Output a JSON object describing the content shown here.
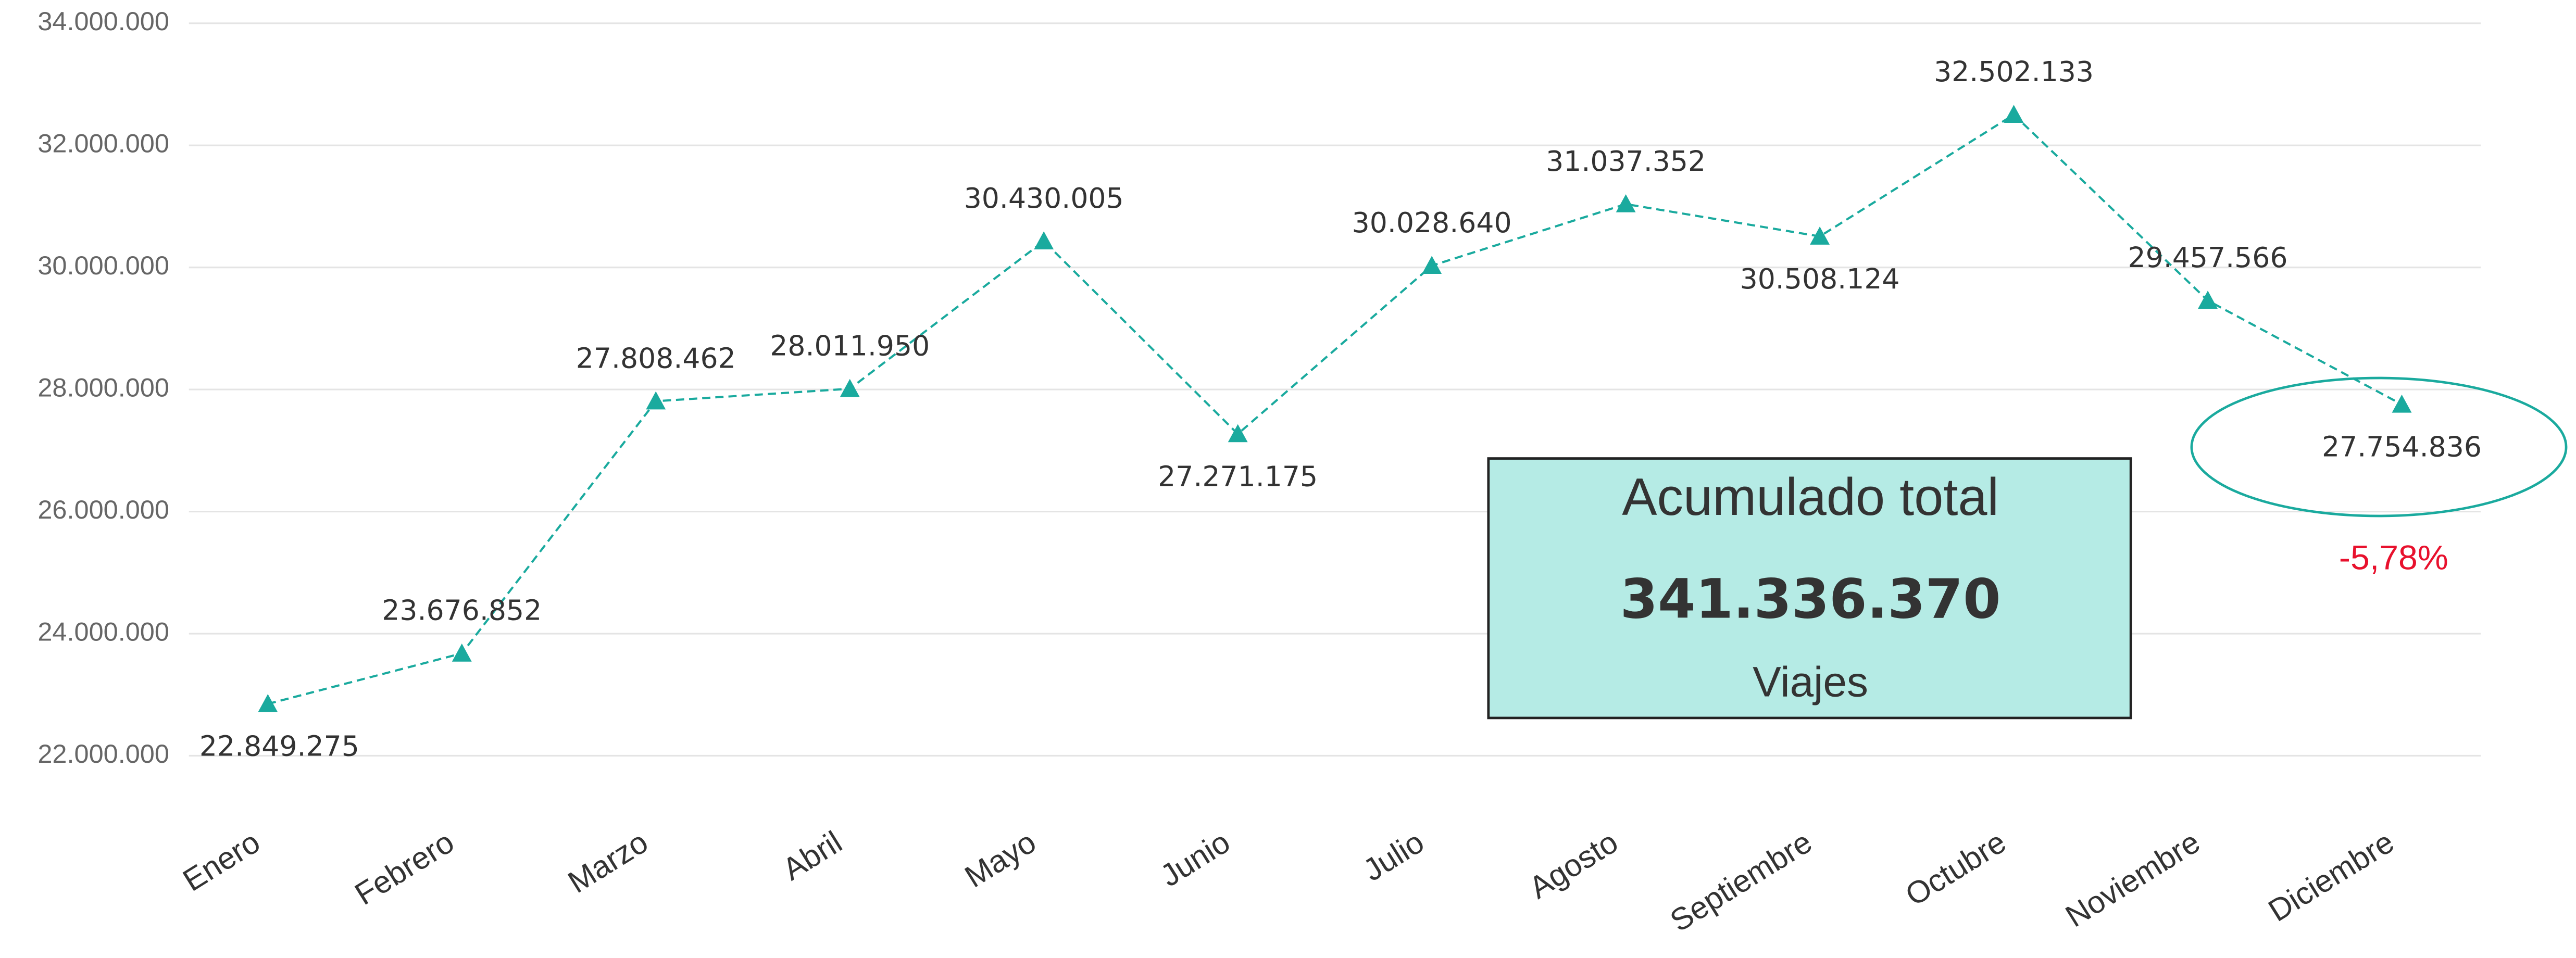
{
  "chart_data": {
    "type": "line",
    "categories": [
      "Enero",
      "Febrero",
      "Marzo",
      "Abril",
      "Mayo",
      "Junio",
      "Julio",
      "Agosto",
      "Septiembre",
      "Octubre",
      "Noviembre",
      "Diciembre"
    ],
    "series": [
      {
        "color": "#1aaa9e",
        "values": [
          22849275,
          23676852,
          27808462,
          28011950,
          30430005,
          27271175,
          30028640,
          31037352,
          30508124,
          32502133,
          29457566,
          27754836
        ],
        "value_labels": [
          "22.849.275",
          "23.676.852",
          "27.808.462",
          "28.011.950",
          "30.430.005",
          "27.271.175",
          "30.028.640",
          "31.037.352",
          "30.508.124",
          "32.502.133",
          "29.457.566",
          "27.754.836"
        ]
      }
    ],
    "ylim": [
      22000000,
      34000000
    ],
    "yticks": [
      {
        "value": 22000000,
        "label": "22.000.000"
      },
      {
        "value": 24000000,
        "label": "24.000.000"
      },
      {
        "value": 26000000,
        "label": "26.000.000"
      },
      {
        "value": 28000000,
        "label": "28.000.000"
      },
      {
        "value": 30000000,
        "label": "30.000.000"
      },
      {
        "value": 32000000,
        "label": "32.000.000"
      },
      {
        "value": 34000000,
        "label": "34.000.000"
      }
    ],
    "grid": true,
    "card": {
      "title": "Acumulado total",
      "value": "341.336.370",
      "unit": "Viajes"
    },
    "change_annotation": "-5,78%"
  }
}
